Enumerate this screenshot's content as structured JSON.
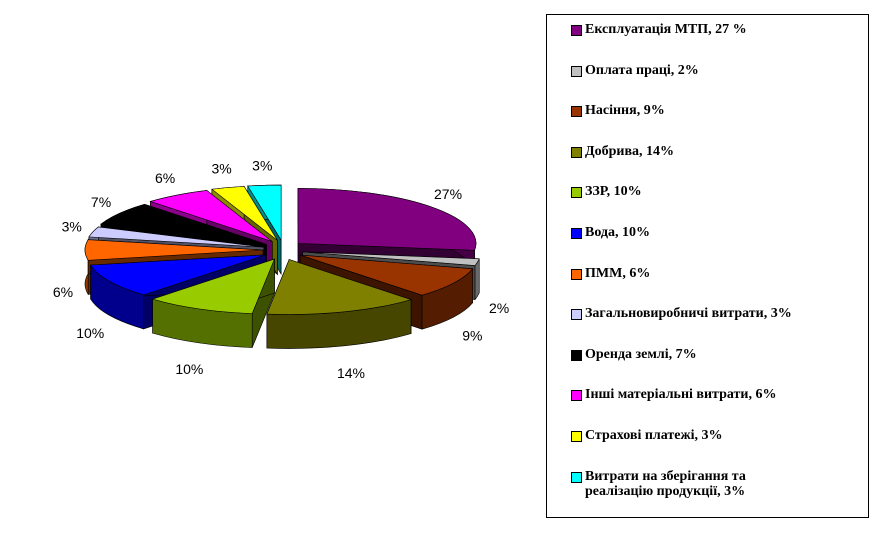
{
  "chart_data": {
    "type": "pie",
    "style": "3d-exploded",
    "categories": [
      "Експлуатація МТП",
      "Оплата праці",
      "Насіння",
      "Добрива",
      "ЗЗР",
      "Вода",
      "ПММ",
      "Загальновиробничі витрати",
      "Оренда землі",
      "Інші матеріальні витрати",
      "Страхові платежі",
      "Витрати на зберігання та реалізацію продукції"
    ],
    "values": [
      27,
      2,
      9,
      14,
      10,
      10,
      6,
      3,
      7,
      6,
      3,
      3
    ],
    "value_labels": [
      "27%",
      "2%",
      "9%",
      "14%",
      "10%",
      "10%",
      "6%",
      "3%",
      "7%",
      "6%",
      "3%",
      "3%"
    ],
    "colors": [
      "#800080",
      "#c0c0c0",
      "#993300",
      "#808000",
      "#99cc00",
      "#0000ff",
      "#ff6600",
      "#ccccff",
      "#000000",
      "#ff00ff",
      "#ffff00",
      "#00ffff"
    ],
    "legend": [
      "Експлуатація МТП, 27 %",
      "Оплата праці, 2%",
      "Насіння, 9%",
      "Добрива, 14%",
      "ЗЗР, 10%",
      "Вода, 10%",
      "ПММ, 6%",
      "Загальновиробничі витрати, 3%",
      "Оренда землі, 7%",
      "Інші матеріальні витрати, 6%",
      "Страхові платежі, 3%",
      "Витрати на зберігання та реалізацію продукції, 3%"
    ],
    "legend_placement": "right"
  }
}
